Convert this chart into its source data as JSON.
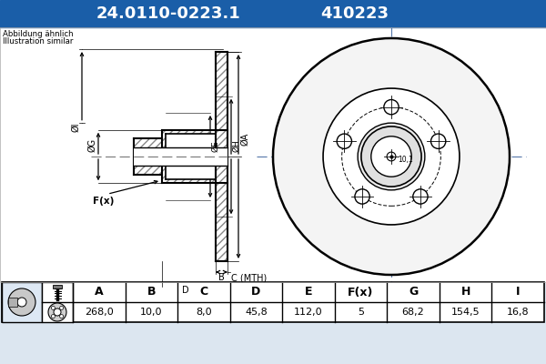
{
  "title_part1": "24.0110-0223.1",
  "title_part2": "410223",
  "title_bg": "#1a5ea8",
  "title_fg": "#ffffff",
  "subtitle_line1": "Abbildung ähnlich",
  "subtitle_line2": "Illustration similar",
  "table_headers": [
    "A",
    "B",
    "C",
    "D",
    "E",
    "F(x)",
    "G",
    "H",
    "I"
  ],
  "table_values": [
    "268,0",
    "10,0",
    "8,0",
    "45,8",
    "112,0",
    "5",
    "68,2",
    "154,5",
    "16,8"
  ],
  "bg_color": "#dce6f0",
  "drawing_bg": "#ffffff",
  "line_color": "#000000",
  "crosshair_color": "#6688aa"
}
